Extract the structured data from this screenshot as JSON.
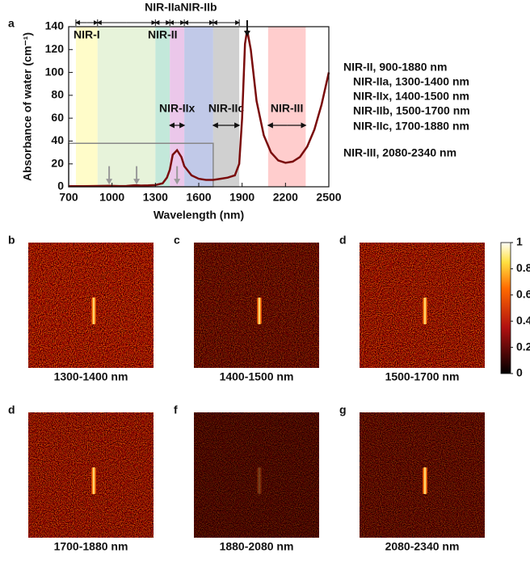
{
  "chart_data": {
    "type": "line",
    "panel_label": "a",
    "xlabel": "Wavelength (nm)",
    "ylabel": "Absorbance of water (cm⁻¹)",
    "x": [
      700,
      800,
      900,
      950,
      980,
      1000,
      1050,
      1100,
      1150,
      1170,
      1200,
      1250,
      1300,
      1350,
      1380,
      1400,
      1420,
      1450,
      1480,
      1500,
      1550,
      1600,
      1650,
      1700,
      1750,
      1800,
      1850,
      1880,
      1900,
      1920,
      1935,
      1960,
      2000,
      2050,
      2100,
      2150,
      2200,
      2250,
      2300,
      2350,
      2400,
      2450,
      2500
    ],
    "values": [
      0.5,
      0.5,
      0.7,
      0.8,
      0.9,
      0.8,
      0.6,
      0.7,
      1.2,
      1.3,
      1.1,
      1.2,
      1.5,
      3,
      8,
      15,
      28,
      32,
      26,
      18,
      10,
      7,
      6,
      6,
      7,
      8,
      10,
      20,
      60,
      125,
      137,
      120,
      75,
      45,
      30,
      23,
      21,
      22,
      26,
      35,
      50,
      72,
      100
    ],
    "color": "#7a0c0c",
    "xlim": [
      700,
      2500
    ],
    "ylim": [
      0,
      140
    ],
    "xticks": [
      700,
      1000,
      1300,
      1600,
      1900,
      2200,
      2500
    ],
    "yticks": [
      0,
      20,
      40,
      60,
      80,
      100,
      120,
      140
    ],
    "bands": [
      {
        "label": "NIR-I",
        "range": [
          750,
          900
        ],
        "color": "#fffbc0"
      },
      {
        "range": [
          900,
          1300
        ],
        "color": "#e3f1d3"
      },
      {
        "label": "NIR-II",
        "range": [
          1300,
          1400
        ],
        "color": "#b9e4d4"
      },
      {
        "label": "NIR-IIx",
        "range": [
          1400,
          1500
        ],
        "color": "#e7bde6"
      },
      {
        "range": [
          1500,
          1700
        ],
        "color": "#b6bfe4"
      },
      {
        "label": "NIR-IIc",
        "range": [
          1700,
          1880
        ],
        "color": "#c8c8c8"
      },
      {
        "label": "NIR-III",
        "range": [
          2080,
          2340
        ],
        "color": "#ffc4c4"
      }
    ],
    "top_labels": [
      {
        "label": "NIR-IIa",
        "range": [
          1300,
          1400
        ]
      },
      {
        "label": "NIR-IIb",
        "range": [
          1500,
          1700
        ]
      }
    ],
    "arrows": [
      980,
      1170,
      1450,
      1935
    ],
    "highlight_box": {
      "x": [
        700,
        1700
      ],
      "y": [
        0,
        38
      ]
    },
    "annotations": [
      {
        "text": "NIR-II, 900-1880 nm",
        "color": "#d0202a"
      },
      {
        "text": "NIR-IIa, 1300-1400 nm",
        "color": "#111111"
      },
      {
        "text": "NIR-IIx, 1400-1500 nm",
        "color": "#d0202a"
      },
      {
        "text": "NIR-IIb, 1500-1700 nm",
        "color": "#111111"
      },
      {
        "text": "NIR-IIc, 1700-1880 nm",
        "color": "#d0202a"
      },
      {
        "text": "NIR-III, 2080-2340 nm",
        "color": "#d0202a"
      }
    ]
  },
  "panels": [
    {
      "label": "b",
      "caption": "1300-1400 nm"
    },
    {
      "label": "c",
      "caption": "1400-1500 nm"
    },
    {
      "label": "d",
      "caption": "1500-1700 nm"
    },
    {
      "label": "d",
      "caption": "1700-1880 nm"
    },
    {
      "label": "f",
      "caption": "1880-2080 nm"
    },
    {
      "label": "g",
      "caption": "2080-2340 nm"
    }
  ],
  "colorbar": {
    "ticks": [
      0,
      0.2,
      0.4,
      0.6,
      0.8,
      1
    ]
  }
}
